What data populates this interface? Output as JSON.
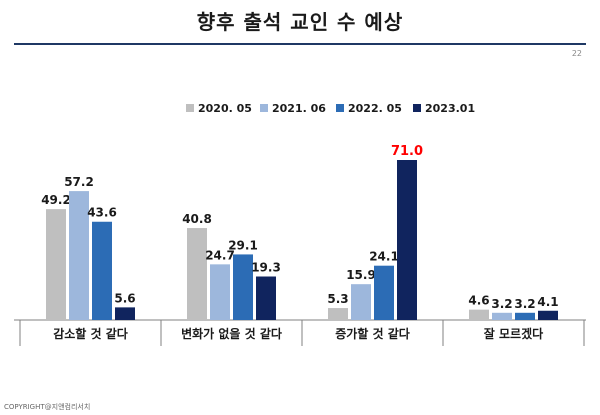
{
  "page": {
    "title": "향후 출석 교인 수 예상",
    "page_number": "22",
    "footer": "COPYRIGHT@지앤컴리서치"
  },
  "chart_data": {
    "type": "bar",
    "title": "향후 출석 교인 수 예상",
    "categories": [
      "감소할 것 같다",
      "변화가 없을 것 같다",
      "증가할 것 같다",
      "잘 모르겠다"
    ],
    "series": [
      {
        "name": "2020. 05",
        "color": "#bfbfbf",
        "values": [
          49.2,
          40.8,
          5.3,
          4.6
        ]
      },
      {
        "name": "2021. 06",
        "color": "#9db7dc",
        "values": [
          57.2,
          24.7,
          15.9,
          3.2
        ]
      },
      {
        "name": "2022. 05",
        "color": "#2c6cb5",
        "values": [
          43.6,
          29.1,
          24.1,
          3.2
        ]
      },
      {
        "name": "2023.01",
        "color": "#10245e",
        "values": [
          5.6,
          19.3,
          71.0,
          4.1
        ]
      }
    ],
    "highlight": {
      "series": 3,
      "category": 2,
      "color": "#ff0000"
    },
    "ylim": [
      0,
      71
    ],
    "legend_position": "top",
    "grid": false,
    "xlabel": "",
    "ylabel": ""
  }
}
